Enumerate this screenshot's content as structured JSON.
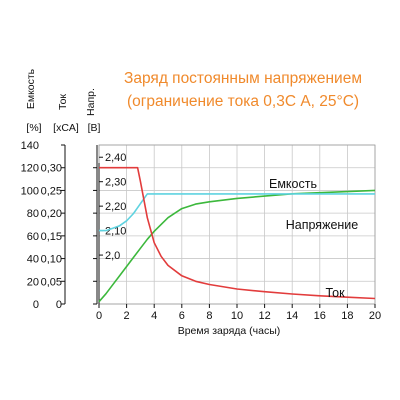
{
  "chart_data": {
    "type": "line",
    "title": [
      "Заряд постоянным напряжением",
      "(ограничение тока 0,3C А, 25°C)"
    ],
    "xlabel": "Время заряда (часы)",
    "xlim": [
      0,
      20
    ],
    "xticks": [
      "0",
      "2",
      "4",
      "6",
      "8",
      "10",
      "12",
      "14",
      "16",
      "18",
      "20"
    ],
    "grid": true,
    "axes": {
      "capacity": {
        "name": "Емкость",
        "unit": "[%]",
        "ylim": [
          0,
          140
        ],
        "ticks": [
          "0",
          "20",
          "40",
          "60",
          "80",
          "100",
          "120",
          "140"
        ]
      },
      "current": {
        "name": "Ток",
        "unit": "[хCA]",
        "ylim": [
          0,
          0.35
        ],
        "ticks": [
          "0",
          "0,05",
          "0,10",
          "0,15",
          "0,20",
          "0,25",
          "0,30"
        ]
      },
      "voltage": {
        "name": "Напр.",
        "unit": "[В]",
        "ylim": [
          1.8,
          2.45
        ],
        "ticks": [
          "2,0",
          "2,10",
          "2,20",
          "2,30",
          "2,40"
        ]
      }
    },
    "series": [
      {
        "name": "Емкость",
        "axis": "capacity",
        "color": "#3cb83c",
        "x": [
          0,
          0.5,
          1,
          1.5,
          2,
          2.5,
          3,
          3.5,
          4,
          5,
          6,
          7,
          8,
          10,
          12,
          14,
          16,
          18,
          20
        ],
        "y": [
          2,
          9,
          17,
          25,
          33,
          41,
          49,
          57,
          64,
          76,
          84,
          88,
          90,
          93,
          95,
          97,
          98,
          99,
          100
        ]
      },
      {
        "name": "Напряжение",
        "axis": "voltage",
        "color": "#5fd3e0",
        "x": [
          0,
          0.5,
          1,
          1.5,
          2,
          2.5,
          3,
          3.5,
          4,
          6,
          8,
          10,
          12,
          14,
          16,
          18,
          20
        ],
        "y": [
          2.1,
          2.1,
          2.11,
          2.12,
          2.14,
          2.17,
          2.21,
          2.25,
          2.25,
          2.25,
          2.25,
          2.25,
          2.25,
          2.25,
          2.25,
          2.25,
          2.25
        ]
      },
      {
        "name": "Ток",
        "axis": "current",
        "color": "#e23c3c",
        "x": [
          0,
          1,
          2,
          2.8,
          3,
          3.5,
          4,
          4.5,
          5,
          6,
          7,
          8,
          10,
          12,
          14,
          16,
          18,
          20
        ],
        "y": [
          0.3,
          0.3,
          0.3,
          0.3,
          0.27,
          0.19,
          0.135,
          0.105,
          0.085,
          0.062,
          0.05,
          0.043,
          0.033,
          0.027,
          0.022,
          0.018,
          0.015,
          0.012
        ]
      }
    ]
  }
}
